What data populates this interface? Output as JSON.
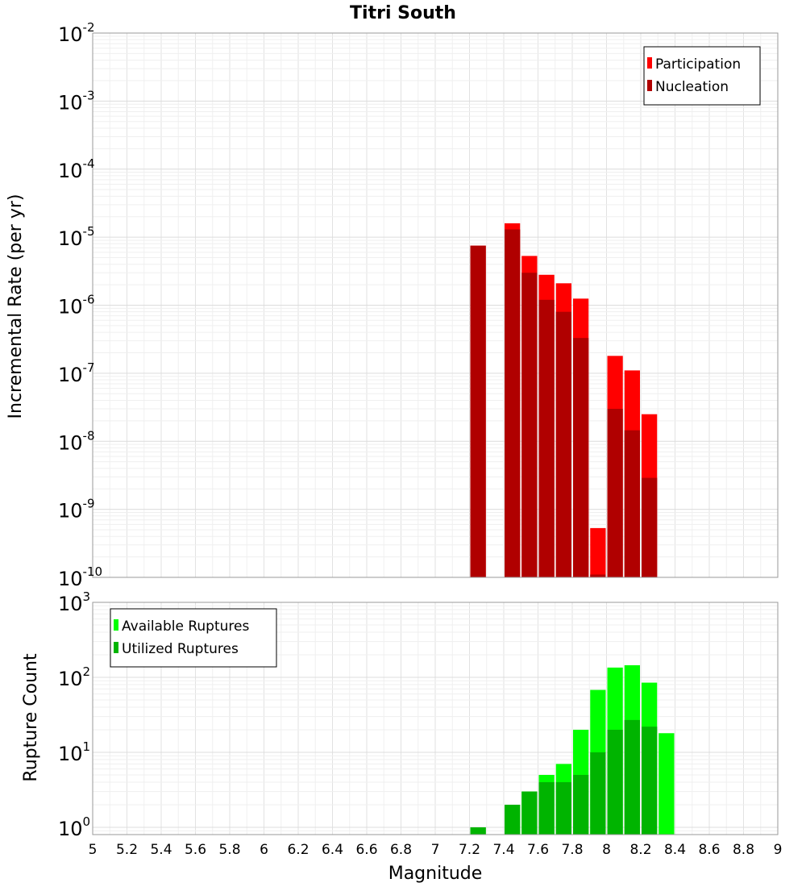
{
  "chart_data": [
    {
      "type": "bar",
      "title": "Titri South",
      "ylabel": "Incremental Rate (per yr)",
      "xlabel": "",
      "yscale": "log",
      "ylim": [
        1e-10,
        0.01
      ],
      "xlim": [
        5,
        9
      ],
      "bar_width": 0.1,
      "legend": "top-right",
      "grid": true,
      "x": [
        7.25,
        7.45,
        7.55,
        7.65,
        7.75,
        7.85,
        7.95,
        8.05,
        8.15,
        8.25
      ],
      "series": [
        {
          "name": "Participation",
          "color": "#ff0000",
          "values": [
            7.5e-06,
            1.6e-05,
            5.3e-06,
            2.8e-06,
            2.1e-06,
            1.25e-06,
            5.3e-10,
            1.8e-07,
            1.1e-07,
            2.5e-08
          ]
        },
        {
          "name": "Nucleation",
          "color": "#b00000",
          "values": [
            7.5e-06,
            1.3e-05,
            3e-06,
            1.2e-06,
            8e-07,
            3.3e-07,
            1.1e-10,
            3e-08,
            1.45e-08,
            2.9e-09
          ]
        }
      ]
    },
    {
      "type": "bar",
      "title": "",
      "ylabel": "Rupture Count",
      "xlabel": "Magnitude",
      "yscale": "log",
      "ylim": [
        0.8,
        1000
      ],
      "xlim": [
        5,
        9
      ],
      "bar_width": 0.1,
      "legend": "top-left",
      "grid": true,
      "xticks": [
        "5",
        "5.2",
        "5.4",
        "5.6",
        "5.8",
        "6",
        "6.2",
        "6.4",
        "6.6",
        "6.8",
        "7",
        "7.2",
        "7.4",
        "7.6",
        "7.8",
        "8",
        "8.2",
        "8.4",
        "8.6",
        "8.8",
        "9"
      ],
      "x": [
        7.25,
        7.45,
        7.55,
        7.65,
        7.75,
        7.85,
        7.95,
        8.05,
        8.15,
        8.25,
        8.35
      ],
      "series": [
        {
          "name": "Available Ruptures",
          "color": "#00ff00",
          "values": [
            1,
            2,
            3,
            5,
            7,
            20,
            68,
            135,
            145,
            85,
            18
          ]
        },
        {
          "name": "Utilized Ruptures",
          "color": "#00b400",
          "values": [
            1,
            2,
            3,
            4,
            4,
            5,
            10,
            20,
            27,
            22,
            0
          ]
        }
      ]
    }
  ],
  "yticks_top": [
    {
      "base": "10",
      "exp": "-10"
    },
    {
      "base": "10",
      "exp": "-9"
    },
    {
      "base": "10",
      "exp": "-8"
    },
    {
      "base": "10",
      "exp": "-7"
    },
    {
      "base": "10",
      "exp": "-6"
    },
    {
      "base": "10",
      "exp": "-5"
    },
    {
      "base": "10",
      "exp": "-4"
    },
    {
      "base": "10",
      "exp": "-3"
    },
    {
      "base": "10",
      "exp": "-2"
    }
  ],
  "yticks_bottom": [
    {
      "base": "10",
      "exp": "0"
    },
    {
      "base": "10",
      "exp": "1"
    },
    {
      "base": "10",
      "exp": "2"
    },
    {
      "base": "10",
      "exp": "3"
    }
  ]
}
